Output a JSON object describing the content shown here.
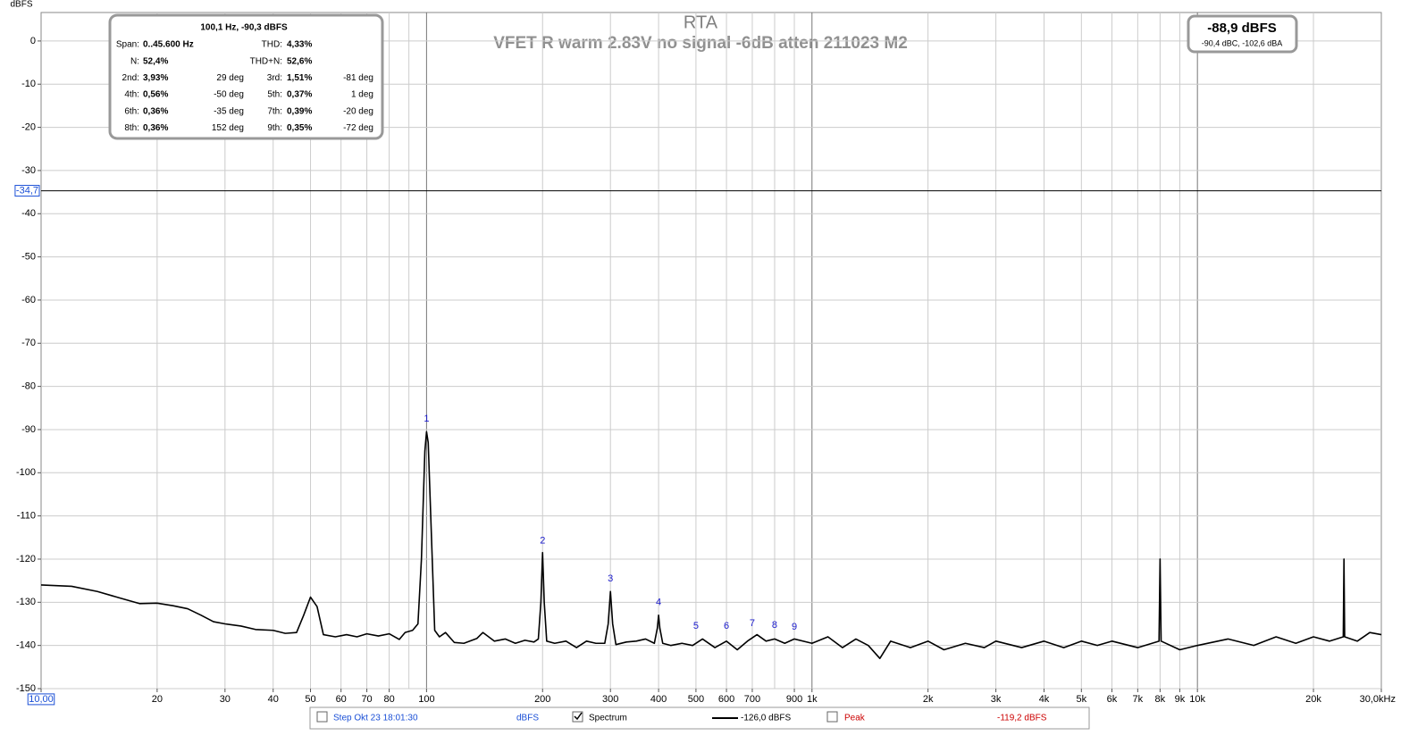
{
  "chart_data": {
    "type": "line",
    "title": "RTA",
    "subtitle": "VFET R warm 2.83V no signal -6dB atten  211023 M2",
    "y_label": "dBFS",
    "x_scale": "log",
    "grid": true,
    "xlim": [
      10,
      30000
    ],
    "ylim": [
      -150,
      6.6
    ],
    "yticks": [
      0,
      -10,
      -20,
      -30,
      -40,
      -50,
      -60,
      -70,
      -80,
      -90,
      -100,
      -110,
      -120,
      -130,
      -140,
      -150
    ],
    "xticks": [
      {
        "value": 10,
        "label": "10,00"
      },
      20,
      30,
      40,
      50,
      60,
      70,
      80,
      100,
      200,
      300,
      400,
      500,
      600,
      700,
      900,
      {
        "value": 1000,
        "label": "1k"
      },
      {
        "value": 2000,
        "label": "2k"
      },
      {
        "value": 3000,
        "label": "3k"
      },
      {
        "value": 4000,
        "label": "4k"
      },
      {
        "value": 5000,
        "label": "5k"
      },
      {
        "value": 6000,
        "label": "6k"
      },
      {
        "value": 7000,
        "label": "7k"
      },
      {
        "value": 8000,
        "label": "8k"
      },
      {
        "value": 9000,
        "label": "9k"
      },
      {
        "value": 10000,
        "label": "10k"
      },
      {
        "value": 20000,
        "label": "20k"
      },
      {
        "value": 30000,
        "label": "30,0kHz"
      }
    ],
    "cursor": {
      "value": -34.7,
      "label": "-34,7"
    },
    "x": [
      10,
      12,
      14,
      16,
      18,
      20,
      22,
      24,
      26,
      28,
      30,
      33,
      36,
      40,
      43,
      46,
      48,
      50,
      52,
      54,
      58,
      62,
      66,
      70,
      75,
      80,
      85,
      88,
      92,
      95,
      97,
      99,
      100,
      101,
      103,
      105,
      108,
      112,
      118,
      125,
      135,
      140,
      150,
      160,
      170,
      180,
      190,
      195,
      198,
      200,
      202,
      205,
      215,
      230,
      245,
      260,
      275,
      290,
      296,
      300,
      304,
      310,
      330,
      350,
      370,
      390,
      397,
      400,
      403,
      410,
      430,
      460,
      490,
      520,
      560,
      600,
      640,
      680,
      720,
      760,
      800,
      850,
      900,
      1000,
      1100,
      1200,
      1300,
      1400,
      1500,
      1600,
      1800,
      2000,
      2200,
      2500,
      2800,
      3000,
      3500,
      4000,
      4500,
      5000,
      5500,
      6000,
      7000,
      7950,
      8000,
      8050,
      9000,
      10000,
      12000,
      14000,
      16000,
      18000,
      20000,
      22000,
      23900,
      24000,
      24100,
      26000,
      28000,
      30000
    ],
    "series": [
      {
        "name": "Spectrum",
        "color": "#000000",
        "values": [
          -126,
          -126.3,
          -127.5,
          -129,
          -130.3,
          -130.2,
          -130.8,
          -131.5,
          -133,
          -134.5,
          -135,
          -135.5,
          -136.3,
          -136.5,
          -137.2,
          -137,
          -133,
          -128.8,
          -131,
          -137.5,
          -138,
          -137.5,
          -138,
          -137.3,
          -137.8,
          -137.3,
          -138.6,
          -137,
          -136.5,
          -135,
          -120,
          -95,
          -90.5,
          -93,
          -115,
          -136.5,
          -138,
          -137,
          -139.3,
          -139.5,
          -138.4,
          -137,
          -139,
          -138.5,
          -139.5,
          -138.8,
          -139.2,
          -138.5,
          -130,
          -118.5,
          -130,
          -139,
          -139.5,
          -139,
          -140.5,
          -139,
          -139.5,
          -139.5,
          -135,
          -127.5,
          -135,
          -139.8,
          -139.2,
          -139,
          -138.5,
          -139.5,
          -136,
          -133,
          -136,
          -139.5,
          -140,
          -139.5,
          -140,
          -138.5,
          -140.5,
          -139,
          -141,
          -139,
          -137.5,
          -139,
          -138.5,
          -139.5,
          -138.5,
          -139.5,
          -138,
          -140.5,
          -138.5,
          -140,
          -143,
          -139,
          -140.5,
          -139,
          -141,
          -139.5,
          -140.5,
          -139,
          -140.5,
          -139,
          -140.5,
          -139,
          -140,
          -139,
          -140.5,
          -139,
          -120,
          -139,
          -141,
          -140,
          -138.5,
          -140,
          -138,
          -139.5,
          -138,
          -139,
          -138,
          -120,
          -138,
          -139,
          -137,
          -137.5
        ]
      }
    ],
    "harmonic_markers": [
      {
        "label": "1",
        "x": 100,
        "y": -89
      },
      {
        "label": "2",
        "x": 200,
        "y": -117.2
      },
      {
        "label": "3",
        "x": 300,
        "y": -126
      },
      {
        "label": "4",
        "x": 400,
        "y": -131.5
      },
      {
        "label": "5",
        "x": 500,
        "y": -137
      },
      {
        "label": "6",
        "x": 600,
        "y": -137
      },
      {
        "label": "7",
        "x": 700,
        "y": -136.4
      },
      {
        "label": "8",
        "x": 800,
        "y": -136.8
      },
      {
        "label": "9",
        "x": 900,
        "y": -137.2
      }
    ],
    "info_box": {
      "header": "100,1 Hz, -90,3 dBFS",
      "rows": [
        {
          "left": [
            "Span:",
            "0..45.600 Hz"
          ],
          "right": [
            "THD:",
            "4,33%"
          ]
        },
        {
          "left": [
            "N:",
            "52,4%"
          ],
          "right": [
            "THD+N:",
            "52,6%"
          ]
        },
        {
          "left": [
            "2nd:",
            "3,93%",
            "29 deg"
          ],
          "right": [
            "3rd:",
            "1,51%",
            "-81 deg"
          ]
        },
        {
          "left": [
            "4th:",
            "0,56%",
            "-50 deg"
          ],
          "right": [
            "5th:",
            "0,37%",
            "1 deg"
          ]
        },
        {
          "left": [
            "6th:",
            "0,36%",
            "-35 deg"
          ],
          "right": [
            "7th:",
            "0,39%",
            "-20 deg"
          ]
        },
        {
          "left": [
            "8th:",
            "0,36%",
            "152 deg"
          ],
          "right": [
            "9th:",
            "0,35%",
            "-72 deg"
          ]
        }
      ]
    },
    "level_box": {
      "main": "-88,9 dBFS",
      "sub": "-90,4 dBC, -102,6 dBA"
    },
    "legend": {
      "step": "Step Okt 23 18:01:30",
      "unit": "dBFS",
      "spectrum": "Spectrum",
      "spectrum_level": "-126,0 dBFS",
      "peak": "Peak",
      "peak_level": "-119,2 dBFS",
      "peak_color": "#cc0000",
      "step_color": "#1a4fd6"
    }
  }
}
